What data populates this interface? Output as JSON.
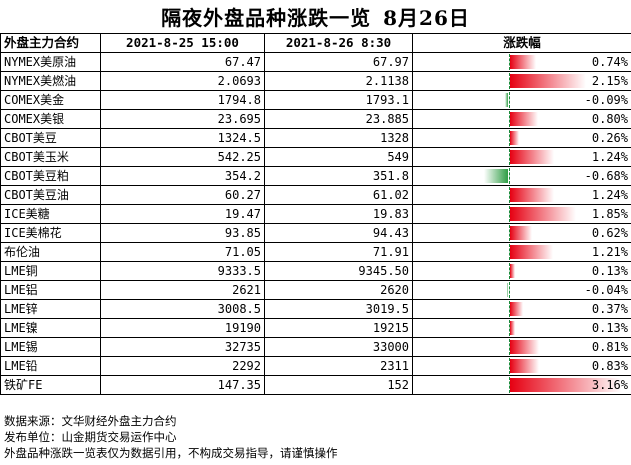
{
  "title": {
    "main": "隔夜外盘品种涨跌一览",
    "date": "8月26日"
  },
  "headers": {
    "name": "外盘主力合约",
    "d1": "2021-8-25 15:00",
    "d2": "2021-8-26 8:30",
    "chg": "涨跌幅"
  },
  "colors": {
    "up": "#e60012",
    "down": "#2f9e45"
  },
  "rows": [
    {
      "name": "NYMEX美原油",
      "v1": "67.47",
      "v2": "67.97",
      "pct": "0.74%",
      "value": 0.74
    },
    {
      "name": "NYMEX美燃油",
      "v1": "2.0693",
      "v2": "2.1138",
      "pct": "2.15%",
      "value": 2.15
    },
    {
      "name": "COMEX美金",
      "v1": "1794.8",
      "v2": "1793.1",
      "pct": "-0.09%",
      "value": -0.09
    },
    {
      "name": "COMEX美银",
      "v1": "23.695",
      "v2": "23.885",
      "pct": "0.80%",
      "value": 0.8
    },
    {
      "name": "CBOT美豆",
      "v1": "1324.5",
      "v2": "1328",
      "pct": "0.26%",
      "value": 0.26
    },
    {
      "name": "CBOT美玉米",
      "v1": "542.25",
      "v2": "549",
      "pct": "1.24%",
      "value": 1.24
    },
    {
      "name": "CBOT美豆粕",
      "v1": "354.2",
      "v2": "351.8",
      "pct": "-0.68%",
      "value": -0.68
    },
    {
      "name": "CBOT美豆油",
      "v1": "60.27",
      "v2": "61.02",
      "pct": "1.24%",
      "value": 1.24
    },
    {
      "name": "ICE美糖",
      "v1": "19.47",
      "v2": "19.83",
      "pct": "1.85%",
      "value": 1.85
    },
    {
      "name": "ICE美棉花",
      "v1": "93.85",
      "v2": "94.43",
      "pct": "0.62%",
      "value": 0.62
    },
    {
      "name": "布伦油",
      "v1": "71.05",
      "v2": "71.91",
      "pct": "1.21%",
      "value": 1.21
    },
    {
      "name": "LME铜",
      "v1": "9333.5",
      "v2": "9345.50",
      "pct": "0.13%",
      "value": 0.13
    },
    {
      "name": "LME铝",
      "v1": "2621",
      "v2": "2620",
      "pct": "-0.04%",
      "value": -0.04
    },
    {
      "name": "LME锌",
      "v1": "3008.5",
      "v2": "3019.5",
      "pct": "0.37%",
      "value": 0.37
    },
    {
      "name": "LME镍",
      "v1": "19190",
      "v2": "19215",
      "pct": "0.13%",
      "value": 0.13
    },
    {
      "name": "LME锡",
      "v1": "32735",
      "v2": "33000",
      "pct": "0.81%",
      "value": 0.81
    },
    {
      "name": "LME铅",
      "v1": "2292",
      "v2": "2311",
      "pct": "0.83%",
      "value": 0.83
    },
    {
      "name": "铁矿FE",
      "v1": "147.35",
      "v2": "152",
      "pct": "3.16%",
      "value": 3.16
    }
  ],
  "footer": {
    "source": "数据来源：文华财经外盘主力合约",
    "publisher": "发布单位：山金期货交易运作中心",
    "disclaimer": "外盘品种涨跌一览表仅为数据引用，不构成交易指导，请谨慎操作"
  }
}
